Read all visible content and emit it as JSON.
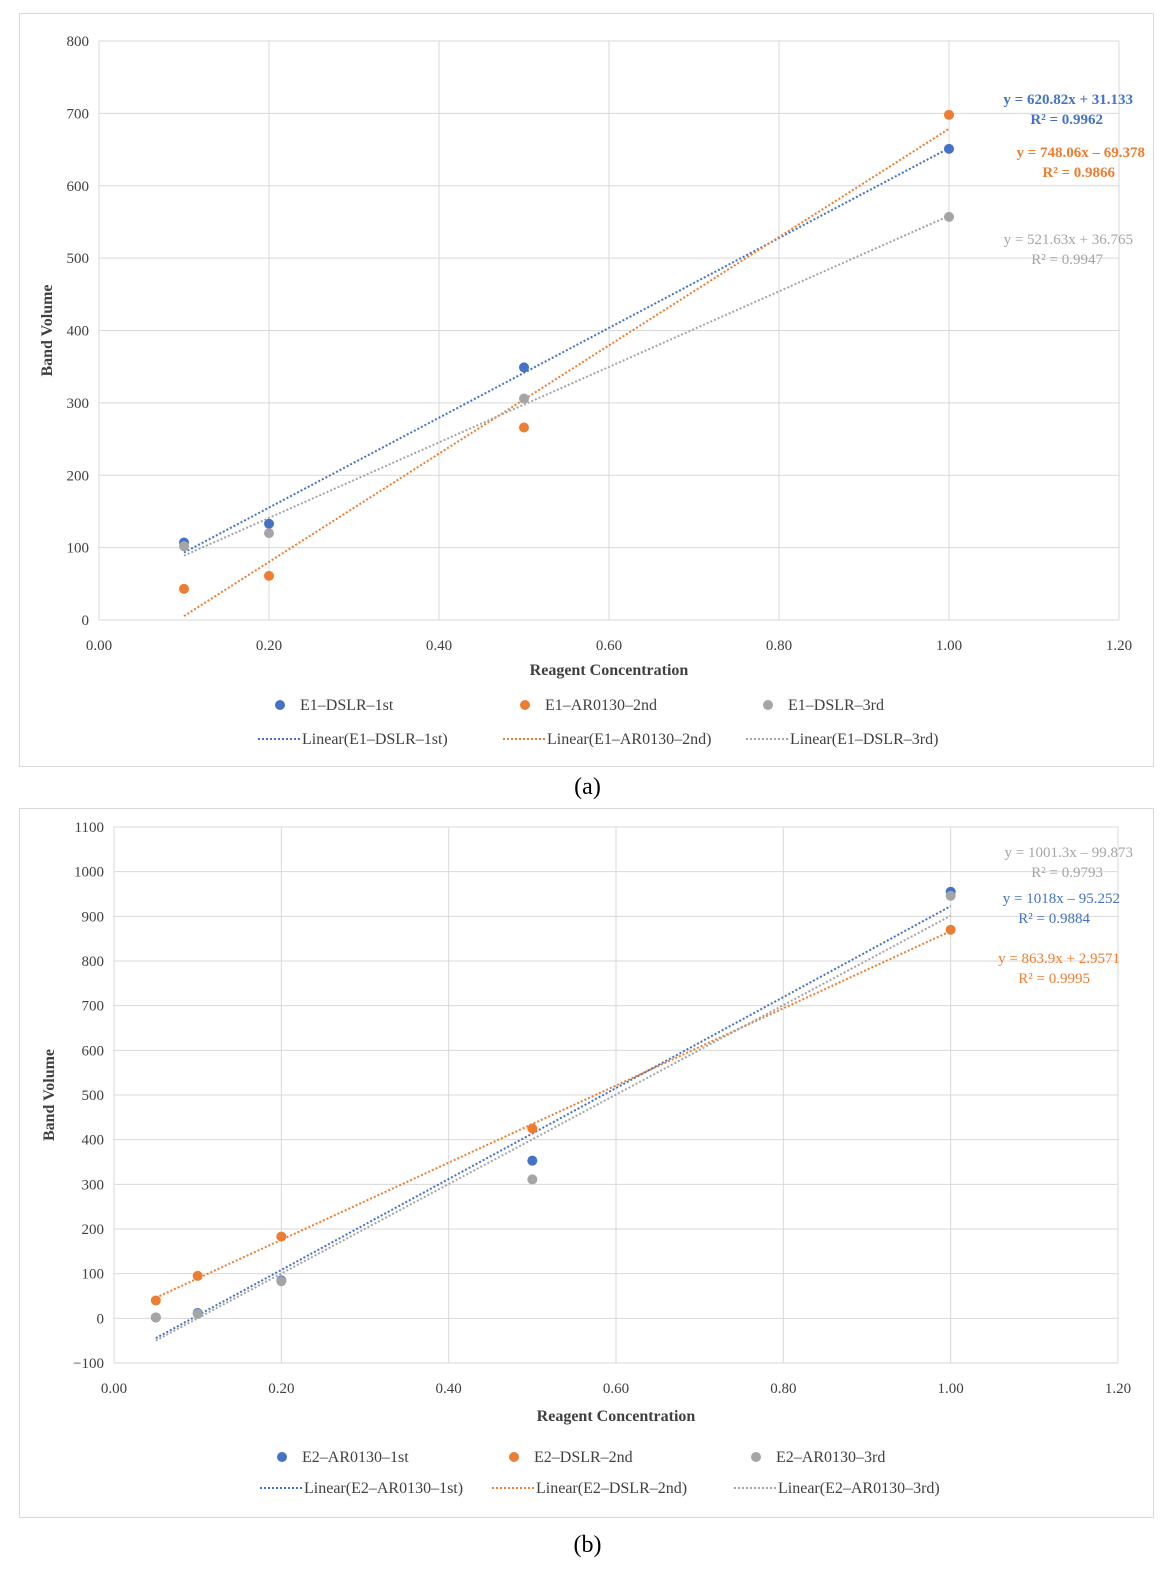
{
  "captions": {
    "a": "(a)",
    "b": "(b)"
  },
  "chart_data": [
    {
      "type": "scatter",
      "panel": "a",
      "xlabel": "Reagent Concentration",
      "ylabel": "Band Volume",
      "xlim": [
        0,
        1.2
      ],
      "ylim": [
        0,
        800
      ],
      "xticks": [
        "0.00",
        "0.20",
        "0.40",
        "0.60",
        "0.80",
        "1.00",
        "1.20"
      ],
      "yticks": [
        "0",
        "100",
        "200",
        "300",
        "400",
        "500",
        "600",
        "700",
        "800"
      ],
      "grid": true,
      "legend_position": "bottom",
      "series": [
        {
          "name": "E1–DSLR–1st",
          "color": "#4472c4",
          "x": [
            0.1,
            0.2,
            0.5,
            1.0
          ],
          "y": [
            107,
            133,
            349,
            651
          ],
          "trend": {
            "label": "Linear(E1–DSLR–1st)",
            "slope": 620.82,
            "intercept": 31.133
          },
          "equation": "y = 620.82x + 31.133",
          "r2": "R² = 0.9962"
        },
        {
          "name": "E1–AR0130–2nd",
          "color": "#ed7d31",
          "x": [
            0.1,
            0.2,
            0.5,
            1.0
          ],
          "y": [
            43,
            61,
            266,
            698
          ],
          "trend": {
            "label": "Linear(E1–AR0130–2nd)",
            "slope": 748.06,
            "intercept": -69.378
          },
          "equation": "y = 748.06x – 69.378",
          "r2": "R² = 0.9866"
        },
        {
          "name": "E1–DSLR–3rd",
          "color": "#a5a5a5",
          "x": [
            0.1,
            0.2,
            0.5,
            1.0
          ],
          "y": [
            102,
            120,
            306,
            557
          ],
          "trend": {
            "label": "Linear(E1–DSLR–3rd)",
            "slope": 521.63,
            "intercept": 36.765
          },
          "equation": "y = 521.63x + 36.765",
          "r2": "R² = 0.9947"
        }
      ]
    },
    {
      "type": "scatter",
      "panel": "b",
      "xlabel": "Reagent Concentration",
      "ylabel": "Band Volume",
      "xlim": [
        0,
        1.2
      ],
      "ylim": [
        -100,
        1100
      ],
      "xticks": [
        "0.00",
        "0.20",
        "0.40",
        "0.60",
        "0.80",
        "1.00",
        "1.20"
      ],
      "yticks": [
        "−100",
        "0",
        "100",
        "200",
        "300",
        "400",
        "500",
        "600",
        "700",
        "800",
        "900",
        "1000",
        "1100"
      ],
      "grid": true,
      "legend_position": "bottom",
      "series": [
        {
          "name": "E2–AR0130–1st",
          "color": "#4472c4",
          "x": [
            0.05,
            0.1,
            0.2,
            0.5,
            1.0
          ],
          "y": [
            2,
            12,
            85,
            353,
            955
          ],
          "trend": {
            "label": "Linear(E2–AR0130–1st)",
            "slope": 1018,
            "intercept": -95.252
          },
          "equation": "y = 1018x – 95.252",
          "r2": "R² = 0.9884"
        },
        {
          "name": "E2–DSLR–2nd",
          "color": "#ed7d31",
          "x": [
            0.05,
            0.1,
            0.2,
            0.5,
            1.0
          ],
          "y": [
            40,
            95,
            183,
            425,
            870
          ],
          "trend": {
            "label": "Linear(E2–DSLR–2nd)",
            "slope": 863.9,
            "intercept": 2.9571
          },
          "equation": "y = 863.9x + 2.9571",
          "r2": "R² = 0.9995"
        },
        {
          "name": "E2–AR0130–3rd",
          "color": "#a5a5a5",
          "x": [
            0.05,
            0.1,
            0.2,
            0.5,
            1.0
          ],
          "y": [
            2,
            10,
            83,
            311,
            946
          ],
          "trend": {
            "label": "Linear(E2–AR0130–3rd)",
            "slope": 1001.3,
            "intercept": -99.873
          },
          "equation": "y = 1001.3x – 99.873",
          "r2": "R² = 0.9793"
        }
      ]
    }
  ]
}
